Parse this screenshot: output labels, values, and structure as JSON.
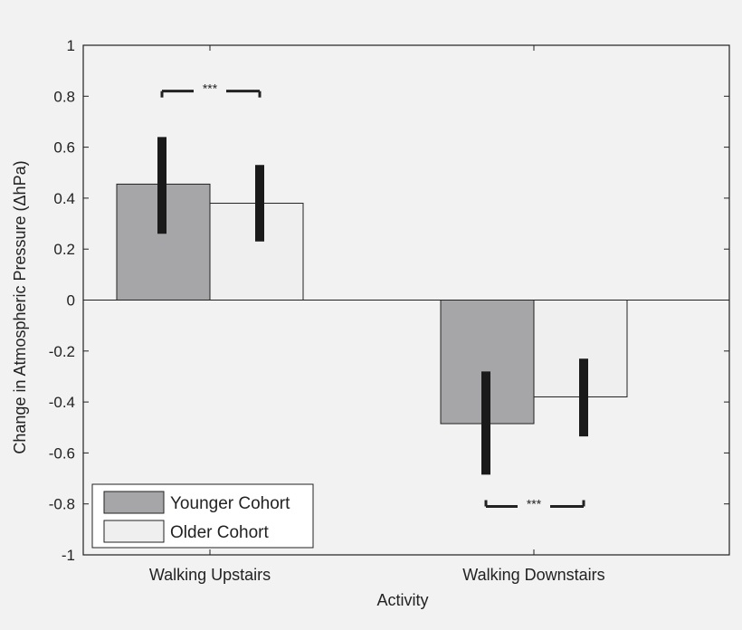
{
  "chart_data": {
    "type": "bar",
    "title": "",
    "xlabel": "Activity",
    "ylabel": "Change in Atmospheric Pressure (ΔhPa)",
    "ylim": [
      -1,
      1
    ],
    "yticks": [
      1,
      0.8,
      0.6,
      0.4,
      0.2,
      0,
      -0.2,
      -0.4,
      -0.6,
      -0.8,
      -1
    ],
    "ytick_labels": [
      "1",
      "0.8",
      "0.6",
      "0.4",
      "0.2",
      "0",
      "-0.2",
      "-0.4",
      "-0.6",
      "-0.8",
      "-1"
    ],
    "categories": [
      "Walking Upstairs",
      "Walking Downstairs"
    ],
    "series": [
      {
        "name": "Younger Cohort",
        "color": "#a6a6a8",
        "values": [
          0.455,
          -0.485
        ],
        "error_low": [
          0.26,
          -0.685
        ],
        "error_high": [
          0.64,
          -0.28
        ]
      },
      {
        "name": "Older Cohort",
        "color": "#efefef",
        "values": [
          0.38,
          -0.38
        ],
        "error_low": [
          0.23,
          -0.535
        ],
        "error_high": [
          0.53,
          -0.23
        ]
      }
    ],
    "legend": {
      "position": "bottom-left"
    },
    "annotations": [
      {
        "text": "***",
        "category": 0,
        "y": 0.82,
        "placement": "above"
      },
      {
        "text": "***",
        "category": 1,
        "y": -0.81,
        "placement": "below"
      }
    ],
    "grid": false,
    "colors": {
      "axis": "#222222",
      "error_bar": "#1a1a1a",
      "background": "#f2f2f2"
    }
  }
}
